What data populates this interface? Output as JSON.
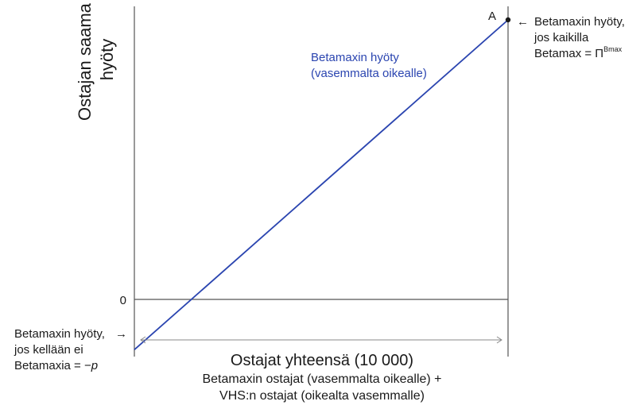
{
  "chart_data": {
    "type": "line",
    "ylabel": [
      "Ostajan saama",
      "hyöty"
    ],
    "xlabel": {
      "title": "Ostajat yhteensä (10 000)",
      "line1": "Betamaxin ostajat (vasemmalta oikealle) +",
      "line2": "VHS:n ostajat (oikealta vasemmalle)"
    },
    "zero_tick": "0",
    "series": [
      {
        "name_lines": [
          "Betamaxin hyöty",
          "(vasemmalta oikealle)"
        ],
        "start": {
          "x": 0,
          "label": "−p"
        },
        "end": {
          "x": 10000,
          "label": "Π^Bmax"
        },
        "x": [
          0,
          10000
        ],
        "y_relative": [
          -0.18,
          1.0
        ]
      }
    ],
    "point": {
      "label": "A"
    },
    "annotations": {
      "right": {
        "arrow": "←",
        "lines": [
          "Betamaxin hyöty,",
          "jos kaikilla"
        ],
        "line3_prefix": "Betamax = Π",
        "line3_sup": "Bmax"
      },
      "left": {
        "arrow": "→",
        "lines": [
          "Betamaxin hyöty,",
          "jos kellään ei"
        ],
        "line3_prefix": "Betamaxia = −",
        "line3_italic": "p"
      }
    },
    "colors": {
      "series": "#2b45b0",
      "axis": "#555555",
      "text": "#1a1a1a",
      "arrow": "#888888"
    }
  }
}
